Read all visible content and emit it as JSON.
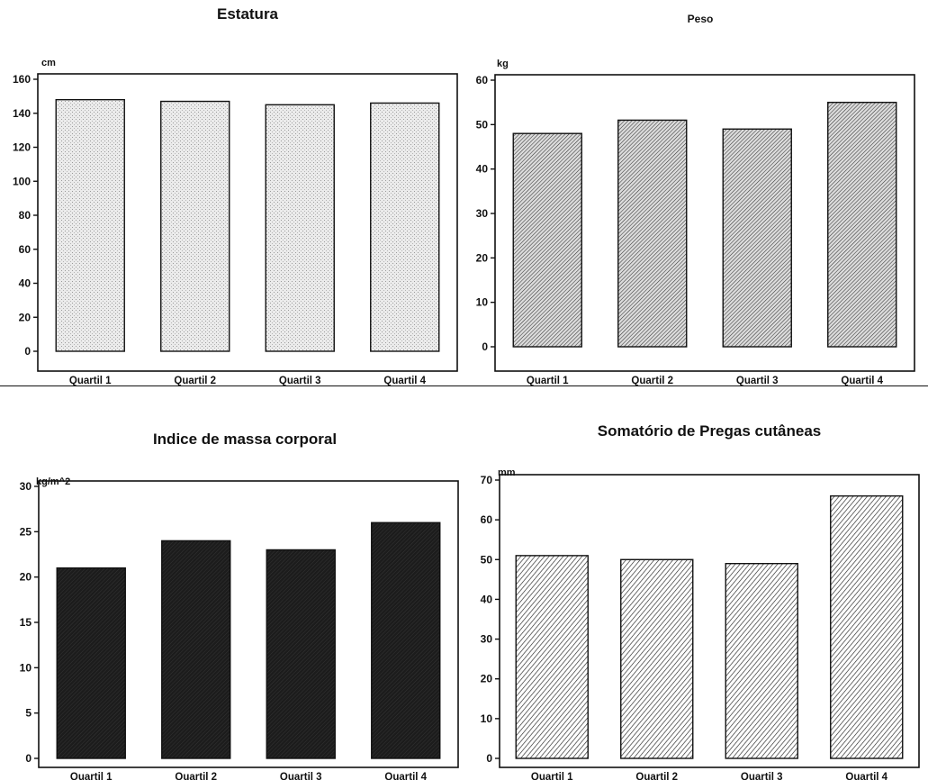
{
  "chart_data": [
    {
      "type": "bar",
      "title": "Estatura",
      "unit": "cm",
      "categories": [
        "Quartil 1",
        "Quartil 2",
        "Quartil 3",
        "Quartil 4"
      ],
      "values": [
        148,
        147,
        145,
        146
      ],
      "ylim": [
        0,
        160
      ],
      "yticks": [
        0,
        20,
        40,
        60,
        80,
        100,
        120,
        140,
        160
      ],
      "bar_fill": "light-stipple",
      "grid": false
    },
    {
      "type": "bar",
      "title": "Peso",
      "unit": "kg",
      "categories": [
        "Quartil 1",
        "Quartil 2",
        "Quartil 3",
        "Quartil 4"
      ],
      "values": [
        48,
        51,
        49,
        55
      ],
      "ylim": [
        0,
        60
      ],
      "yticks": [
        0,
        10,
        20,
        30,
        40,
        50,
        60
      ],
      "bar_fill": "dense-hatch",
      "grid": false
    },
    {
      "type": "bar",
      "title": "Indice de massa corporal",
      "unit": "kg/m^2",
      "categories": [
        "Quartil 1",
        "Quartil 2",
        "Quartil 3",
        "Quartil 4"
      ],
      "values": [
        21,
        24,
        23,
        26
      ],
      "ylim": [
        0,
        30
      ],
      "yticks": [
        0,
        5,
        10,
        15,
        20,
        25,
        30
      ],
      "bar_fill": "dark",
      "grid": false
    },
    {
      "type": "bar",
      "title": "Somatório de Pregas cutâneas",
      "unit": "mm",
      "categories": [
        "Quartil 1",
        "Quartil 2",
        "Quartil 3",
        "Quartil 4"
      ],
      "values": [
        51,
        50,
        49,
        66
      ],
      "ylim": [
        0,
        70
      ],
      "yticks": [
        0,
        10,
        20,
        30,
        40,
        50,
        60,
        70
      ],
      "bar_fill": "diagonal-hatch",
      "grid": false
    }
  ],
  "colors": {
    "ink": "#111111",
    "panel_bg": "#ffffff",
    "light_stipple": "#e8e8e8",
    "dark_bar": "#1c1c1c"
  }
}
